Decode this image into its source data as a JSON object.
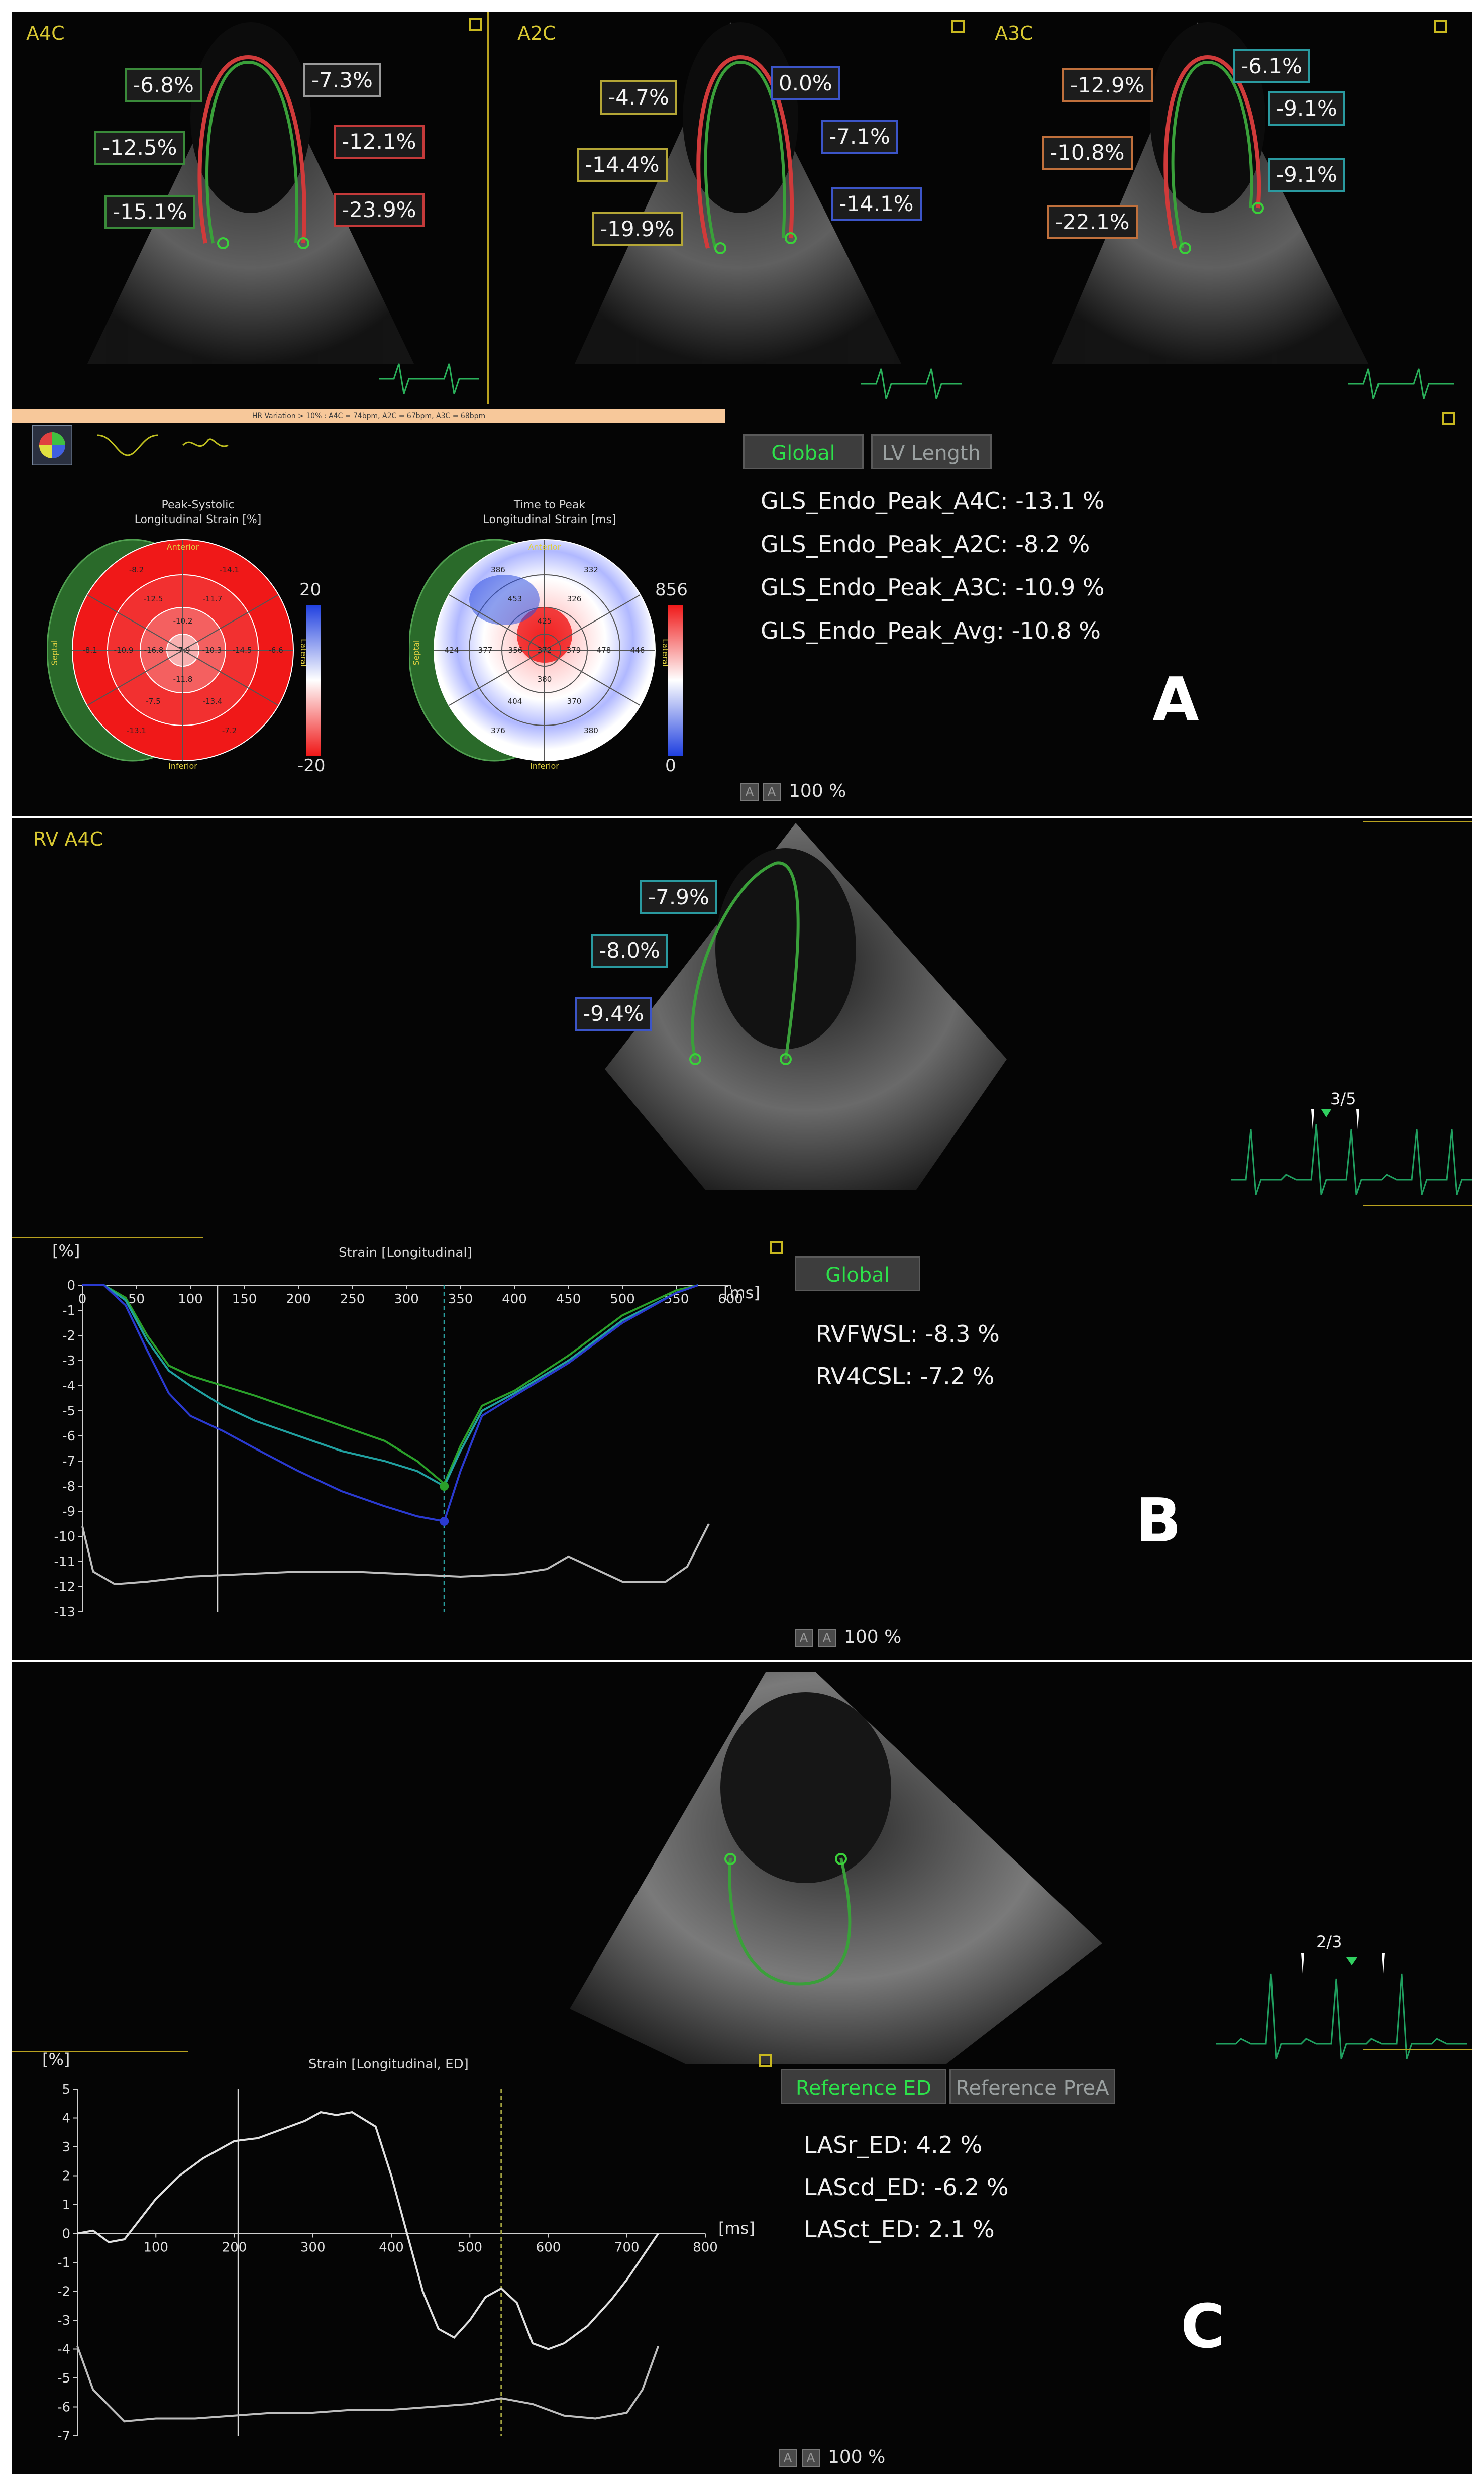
{
  "panel_a": {
    "views": [
      {
        "label": "A4C",
        "segments": [
          "-6.8%",
          "-7.3%",
          "-12.5%",
          "-12.1%",
          "-15.1%",
          "-23.9%"
        ]
      },
      {
        "label": "A2C",
        "segments": [
          "-4.7%",
          "0.0%",
          "-14.4%",
          "-7.1%",
          "-19.9%",
          "-14.1%"
        ]
      },
      {
        "label": "A3C",
        "segments": [
          "-12.9%",
          "-6.1%",
          "-10.8%",
          "-9.1%",
          "-22.1%",
          "-9.1%"
        ]
      }
    ],
    "hr_warning": "HR Variation > 10% : A4C = 74bpm, A2C = 67bpm, A3C = 68bpm",
    "tabs": {
      "global": "Global",
      "lv_length": "LV Length"
    },
    "metrics": [
      "GLS_Endo_Peak_A4C: -13.1 %",
      "GLS_Endo_Peak_A2C: -8.2 %",
      "GLS_Endo_Peak_A3C: -10.9 %",
      "GLS_Endo_Peak_Avg: -10.8 %"
    ],
    "bullseye_strain": {
      "title": "Peak-Systolic\nLongitudinal Strain [%]",
      "scale_max": "20",
      "scale_min": "-20",
      "labels": {
        "anterior": "Anterior",
        "inferior": "Inferior",
        "septal": "Septal",
        "lateral": "Lateral"
      },
      "values": [
        "-14.1",
        "-6.6",
        "-7.2",
        "-13.1",
        "-8.1",
        "-8.2",
        "-11.7",
        "-14.5",
        "-13.4",
        "-7.5",
        "-10.9",
        "-12.5",
        "-10.3",
        "-11.8",
        "-16.8",
        "-10.2",
        "-7.9"
      ]
    },
    "bullseye_time": {
      "title": "Time to Peak\nLongitudinal Strain [ms]",
      "scale_max": "856",
      "scale_min": "0",
      "labels": {
        "anterior": "Anterior",
        "inferior": "Inferior",
        "septal": "Septal",
        "lateral": "Lateral"
      },
      "values": [
        "332",
        "446",
        "380",
        "376",
        "424",
        "386",
        "326",
        "478",
        "370",
        "404",
        "377",
        "453",
        "379",
        "380",
        "356",
        "425",
        "372"
      ]
    },
    "letter": "A",
    "zoom": "100 %"
  },
  "panel_b": {
    "view_label": "RV A4C",
    "segments": [
      "-7.9%",
      "-8.0%",
      "-9.4%"
    ],
    "beat_counter": "3/5",
    "tab_global": "Global",
    "metrics": [
      "RVFWSL: -8.3 %",
      "RV4CSL: -7.2 %"
    ],
    "chart_data": {
      "type": "line",
      "title": "Strain [Longitudinal]",
      "ylabel": "[%]",
      "xlabel": "[ms]",
      "xlim": [
        0,
        600
      ],
      "ylim": [
        -13,
        0
      ],
      "xticks": [
        0,
        50,
        100,
        150,
        200,
        250,
        300,
        350,
        400,
        450,
        500,
        550,
        600
      ],
      "yticks": [
        0,
        -1,
        -2,
        -3,
        -4,
        -5,
        -6,
        -7,
        -8,
        -9,
        -10,
        -11,
        -12,
        -13
      ],
      "series": [
        {
          "color": "#2aa02a",
          "x": [
            0,
            20,
            40,
            60,
            80,
            100,
            130,
            160,
            200,
            240,
            280,
            310,
            335,
            350,
            370,
            400,
            450,
            500,
            550,
            570
          ],
          "y": [
            0,
            0,
            -0.5,
            -2,
            -3.2,
            -3.6,
            -4,
            -4.4,
            -5,
            -5.6,
            -6.2,
            -7,
            -7.9,
            -6.4,
            -4.8,
            -4.2,
            -2.8,
            -1.2,
            -0.2,
            0
          ]
        },
        {
          "color": "#20a0a0",
          "x": [
            0,
            20,
            40,
            60,
            80,
            100,
            130,
            160,
            200,
            240,
            280,
            310,
            335,
            350,
            370,
            400,
            450,
            500,
            550,
            570
          ],
          "y": [
            0,
            0,
            -0.6,
            -2.2,
            -3.4,
            -4,
            -4.8,
            -5.4,
            -6,
            -6.6,
            -7,
            -7.4,
            -8.0,
            -6.6,
            -5,
            -4.3,
            -3,
            -1.4,
            -0.3,
            0
          ]
        },
        {
          "color": "#2a3ad0",
          "x": [
            0,
            20,
            40,
            60,
            80,
            100,
            130,
            160,
            200,
            240,
            280,
            310,
            335,
            350,
            370,
            400,
            450,
            500,
            550,
            570
          ],
          "y": [
            0,
            0,
            -0.8,
            -2.6,
            -4.3,
            -5.2,
            -5.8,
            -6.5,
            -7.4,
            -8.2,
            -8.8,
            -9.2,
            -9.4,
            -7.4,
            -5.2,
            -4.4,
            -3.1,
            -1.5,
            -0.3,
            0
          ]
        },
        {
          "color": "#bdbdbd",
          "x": [
            0,
            10,
            30,
            60,
            100,
            150,
            200,
            250,
            300,
            350,
            400,
            430,
            450,
            470,
            500,
            540,
            560,
            580
          ],
          "y": [
            -9.6,
            -11.4,
            -11.9,
            -11.8,
            -11.6,
            -11.5,
            -11.4,
            -11.4,
            -11.5,
            -11.6,
            -11.5,
            -11.3,
            -10.8,
            -11.2,
            -11.8,
            -11.8,
            -11.2,
            -9.5
          ]
        }
      ],
      "markers": [
        {
          "x": 335,
          "y": -8.0
        },
        {
          "x": 335,
          "y": -9.4
        }
      ],
      "cursor_x": [
        125,
        335
      ]
    },
    "letter": "B",
    "zoom": "100 %"
  },
  "panel_c": {
    "beat_counter": "2/3",
    "tabs": {
      "reference_ed": "Reference ED",
      "reference_prea": "Reference PreA"
    },
    "metrics": [
      "LASr_ED: 4.2 %",
      "LAScd_ED: -6.2 %",
      "LASct_ED: 2.1 %"
    ],
    "chart_data": {
      "type": "line",
      "title": "Strain [Longitudinal, ED]",
      "ylabel": "[%]",
      "xlabel": "[ms]",
      "xlim": [
        0,
        800
      ],
      "ylim": [
        -7,
        5
      ],
      "xticks": [
        100,
        200,
        300,
        400,
        500,
        600,
        700,
        800
      ],
      "yticks": [
        5,
        4,
        3,
        2,
        1,
        0,
        -1,
        -2,
        -3,
        -4,
        -5,
        -6,
        -7
      ],
      "series": [
        {
          "color": "#e0e0e0",
          "x": [
            0,
            20,
            40,
            60,
            80,
            100,
            130,
            160,
            200,
            230,
            260,
            290,
            310,
            330,
            350,
            380,
            400,
            420,
            440,
            460,
            480,
            500,
            520,
            540,
            560,
            580,
            600,
            620,
            650,
            680,
            700,
            720,
            740
          ],
          "y": [
            0,
            0.1,
            -0.3,
            -0.2,
            0.5,
            1.2,
            2,
            2.6,
            3.2,
            3.3,
            3.6,
            3.9,
            4.2,
            4.1,
            4.2,
            3.7,
            2,
            0,
            -2,
            -3.3,
            -3.6,
            -3,
            -2.2,
            -1.9,
            -2.4,
            -3.8,
            -4,
            -3.8,
            -3.2,
            -2.3,
            -1.6,
            -0.8,
            0
          ]
        },
        {
          "color": "#bdbdbd",
          "x": [
            0,
            20,
            60,
            100,
            150,
            200,
            250,
            300,
            350,
            400,
            450,
            500,
            540,
            580,
            620,
            660,
            700,
            720,
            740
          ],
          "y": [
            -3.9,
            -5.4,
            -6.5,
            -6.4,
            -6.4,
            -6.3,
            -6.2,
            -6.2,
            -6.1,
            -6.1,
            -6.0,
            -5.9,
            -5.7,
            -5.9,
            -6.3,
            -6.4,
            -6.2,
            -5.4,
            -3.9
          ]
        }
      ],
      "cursor_x": [
        205,
        540
      ]
    },
    "letter": "C",
    "zoom": "100 %"
  }
}
